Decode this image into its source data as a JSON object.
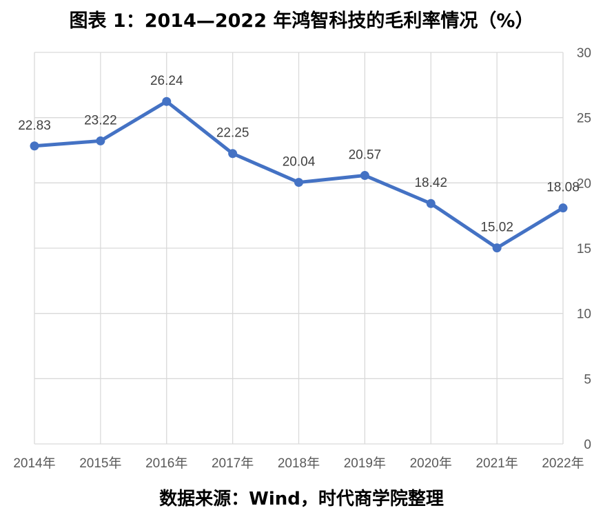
{
  "title": "图表 1：2014—2022 年鸿智科技的毛利率情况（%）",
  "source": "数据来源：Wind，时代商学院整理",
  "chart_data": {
    "type": "line",
    "title": "图表 1：2014—2022 年鸿智科技的毛利率情况（%）",
    "xlabel": "",
    "ylabel": "",
    "categories": [
      "2014年",
      "2015年",
      "2016年",
      "2017年",
      "2018年",
      "2019年",
      "2020年",
      "2021年",
      "2022年"
    ],
    "series": [
      {
        "values": [
          22.83,
          23.22,
          26.24,
          22.25,
          20.04,
          20.57,
          18.42,
          15.02,
          18.08
        ],
        "color": "#4472C4"
      }
    ],
    "ylim": [
      0,
      30
    ],
    "yticks": [
      0,
      5,
      10,
      15,
      20,
      25,
      30
    ],
    "y_axis_position": "right",
    "grid": true,
    "data_labels": true,
    "legend": "none"
  }
}
